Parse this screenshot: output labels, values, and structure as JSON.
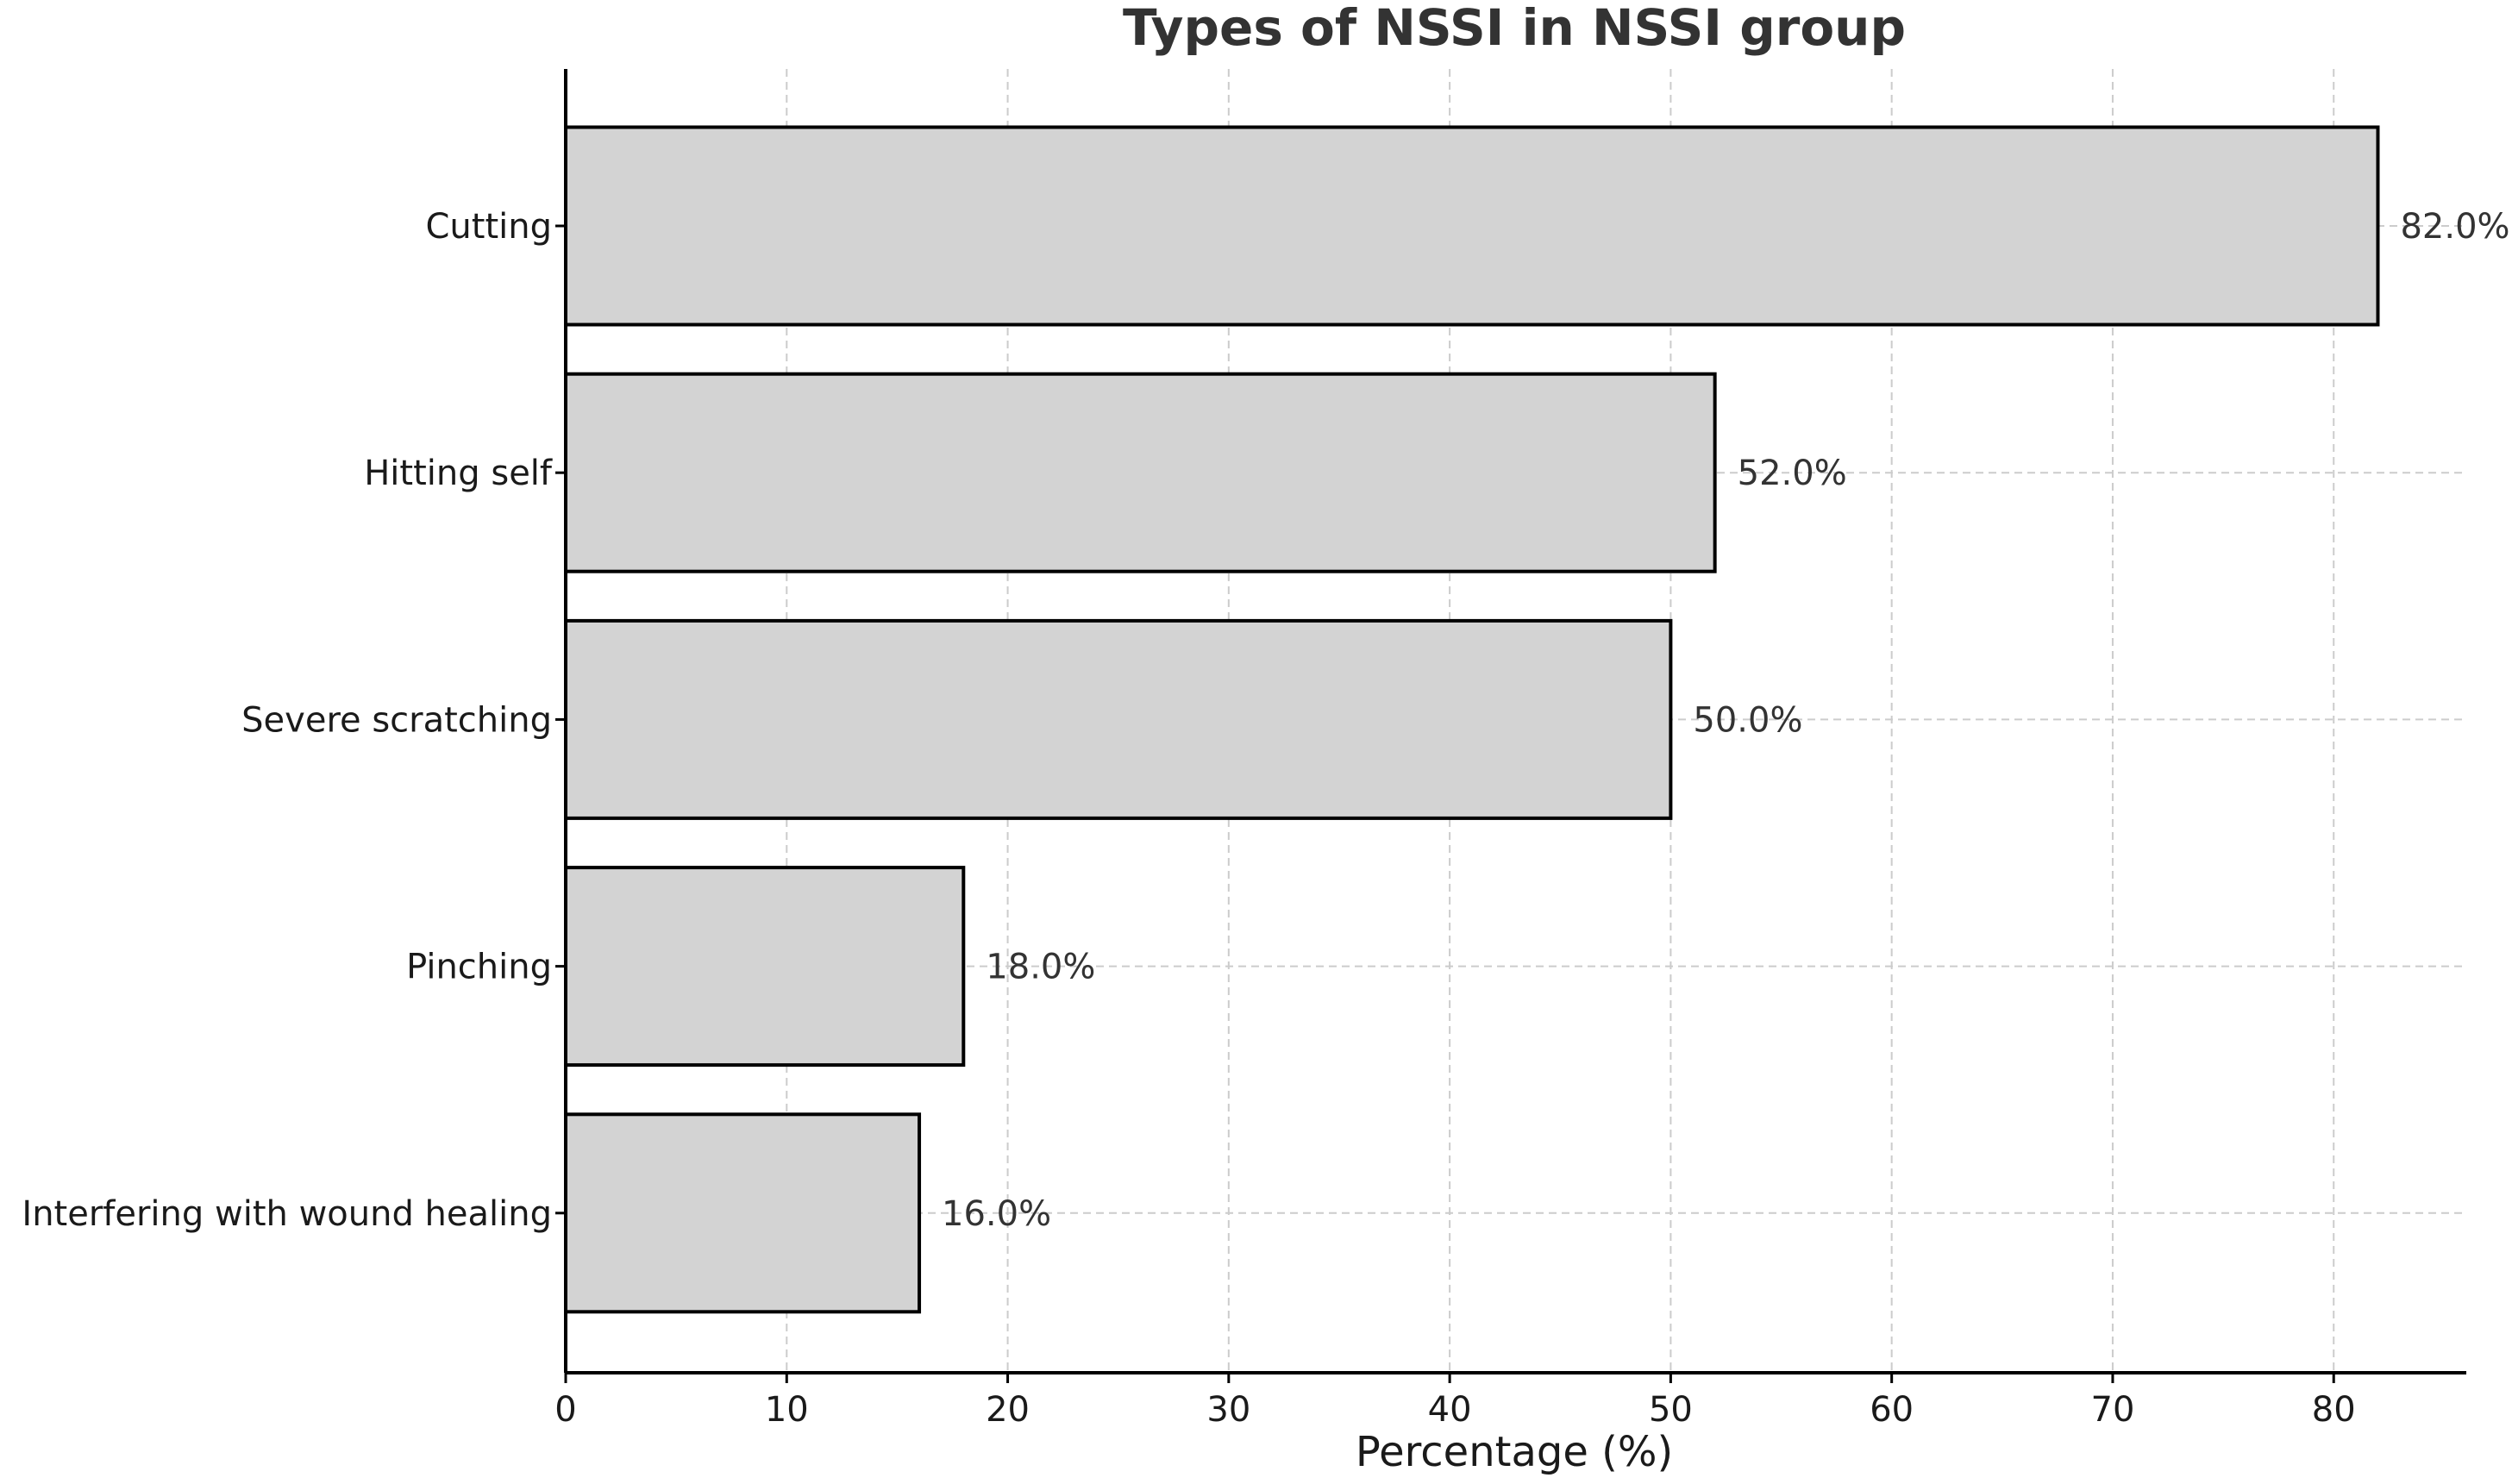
{
  "chart_data": {
    "type": "bar",
    "orientation": "horizontal",
    "title": "Types of NSSI in NSSI group",
    "xlabel": "Percentage (%)",
    "ylabel": "",
    "categories": [
      "Cutting",
      "Hitting self",
      "Severe scratching",
      "Pinching",
      "Interfering with wound healing"
    ],
    "values": [
      82,
      52,
      50,
      18,
      16
    ],
    "data_labels": [
      "82.0%",
      "52.0%",
      "50.0%",
      "18.0%",
      "16.0%"
    ],
    "xlim": [
      0,
      86
    ],
    "xticks": [
      0,
      10,
      20,
      30,
      40,
      50,
      60,
      70,
      80
    ],
    "grid": true,
    "legend": "none",
    "colors": {
      "bar_fill": "#d3d3d3",
      "bar_edge": "#000000",
      "grid": "#cccccc"
    }
  }
}
